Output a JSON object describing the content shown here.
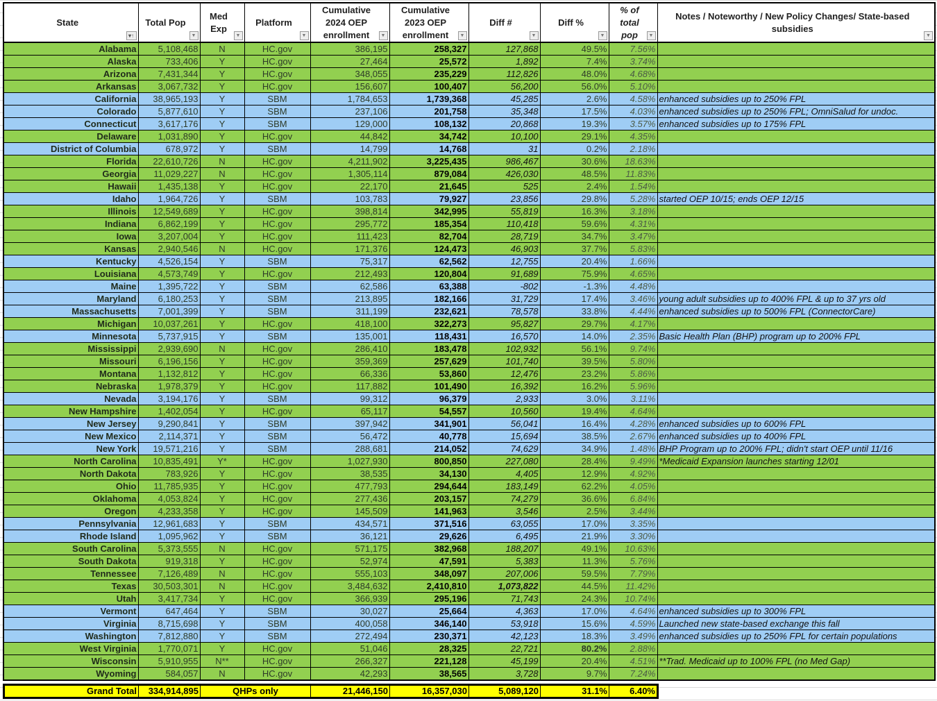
{
  "colors": {
    "hcgov": "#92d050",
    "sbm": "#9fcdf5",
    "total": "#ffff00"
  },
  "headers": [
    "State",
    "Total Pop",
    "Med Exp",
    "Platform",
    "Cumulative 2024 OEP enrollment",
    "Cumulative 2023 OEP enrollment",
    "Diff #",
    "Diff %",
    "% of total pop",
    "Notes / Noteworthy / New Policy Changes/ State-based subsidies"
  ],
  "rows": [
    [
      "Alabama",
      "5,108,468",
      "N",
      "HC.gov",
      "386,195",
      "258,327",
      "127,868",
      "49.5%",
      "7.56%",
      ""
    ],
    [
      "Alaska",
      "733,406",
      "Y",
      "HC.gov",
      "27,464",
      "25,572",
      "1,892",
      "7.4%",
      "3.74%",
      ""
    ],
    [
      "Arizona",
      "7,431,344",
      "Y",
      "HC.gov",
      "348,055",
      "235,229",
      "112,826",
      "48.0%",
      "4.68%",
      ""
    ],
    [
      "Arkansas",
      "3,067,732",
      "Y",
      "HC.gov",
      "156,607",
      "100,407",
      "56,200",
      "56.0%",
      "5.10%",
      ""
    ],
    [
      "California",
      "38,965,193",
      "Y",
      "SBM",
      "1,784,653",
      "1,739,368",
      "45,285",
      "2.6%",
      "4.58%",
      "enhanced subsidies up to 250% FPL"
    ],
    [
      "Colorado",
      "5,877,610",
      "Y",
      "SBM",
      "237,106",
      "201,758",
      "35,348",
      "17.5%",
      "4.03%",
      "enhanced subsidies up to 250% FPL; OmniSalud for undoc."
    ],
    [
      "Connecticut",
      "3,617,176",
      "Y",
      "SBM",
      "129,000",
      "108,132",
      "20,868",
      "19.3%",
      "3.57%",
      "enhanced subsidies up to 175% FPL"
    ],
    [
      "Delaware",
      "1,031,890",
      "Y",
      "HC.gov",
      "44,842",
      "34,742",
      "10,100",
      "29.1%",
      "4.35%",
      ""
    ],
    [
      "District of Columbia",
      "678,972",
      "Y",
      "SBM",
      "14,799",
      "14,768",
      "31",
      "0.2%",
      "2.18%",
      ""
    ],
    [
      "Florida",
      "22,610,726",
      "N",
      "HC.gov",
      "4,211,902",
      "3,225,435",
      "986,467",
      "30.6%",
      "18.63%",
      ""
    ],
    [
      "Georgia",
      "11,029,227",
      "N",
      "HC.gov",
      "1,305,114",
      "879,084",
      "426,030",
      "48.5%",
      "11.83%",
      ""
    ],
    [
      "Hawaii",
      "1,435,138",
      "Y",
      "HC.gov",
      "22,170",
      "21,645",
      "525",
      "2.4%",
      "1.54%",
      ""
    ],
    [
      "Idaho",
      "1,964,726",
      "Y",
      "SBM",
      "103,783",
      "79,927",
      "23,856",
      "29.8%",
      "5.28%",
      "started OEP 10/15; ends OEP 12/15"
    ],
    [
      "Illinois",
      "12,549,689",
      "Y",
      "HC.gov",
      "398,814",
      "342,995",
      "55,819",
      "16.3%",
      "3.18%",
      ""
    ],
    [
      "Indiana",
      "6,862,199",
      "Y",
      "HC.gov",
      "295,772",
      "185,354",
      "110,418",
      "59.6%",
      "4.31%",
      ""
    ],
    [
      "Iowa",
      "3,207,004",
      "Y",
      "HC.gov",
      "111,423",
      "82,704",
      "28,719",
      "34.7%",
      "3.47%",
      ""
    ],
    [
      "Kansas",
      "2,940,546",
      "N",
      "HC.gov",
      "171,376",
      "124,473",
      "46,903",
      "37.7%",
      "5.83%",
      ""
    ],
    [
      "Kentucky",
      "4,526,154",
      "Y",
      "SBM",
      "75,317",
      "62,562",
      "12,755",
      "20.4%",
      "1.66%",
      ""
    ],
    [
      "Louisiana",
      "4,573,749",
      "Y",
      "HC.gov",
      "212,493",
      "120,804",
      "91,689",
      "75.9%",
      "4.65%",
      ""
    ],
    [
      "Maine",
      "1,395,722",
      "Y",
      "SBM",
      "62,586",
      "63,388",
      "-802",
      "-1.3%",
      "4.48%",
      ""
    ],
    [
      "Maryland",
      "6,180,253",
      "Y",
      "SBM",
      "213,895",
      "182,166",
      "31,729",
      "17.4%",
      "3.46%",
      "young adult subsidies up to 400% FPL & up to 37 yrs old"
    ],
    [
      "Massachusetts",
      "7,001,399",
      "Y",
      "SBM",
      "311,199",
      "232,621",
      "78,578",
      "33.8%",
      "4.44%",
      "enhanced subsidies up to 500% FPL (ConnectorCare)"
    ],
    [
      "Michigan",
      "10,037,261",
      "Y",
      "HC.gov",
      "418,100",
      "322,273",
      "95,827",
      "29.7%",
      "4.17%",
      ""
    ],
    [
      "Minnesota",
      "5,737,915",
      "Y",
      "SBM",
      "135,001",
      "118,431",
      "16,570",
      "14.0%",
      "2.35%",
      "Basic Health Plan (BHP) program up to 200% FPL"
    ],
    [
      "Mississippi",
      "2,939,690",
      "N",
      "HC.gov",
      "286,410",
      "183,478",
      "102,932",
      "56.1%",
      "9.74%",
      ""
    ],
    [
      "Missouri",
      "6,196,156",
      "Y",
      "HC.gov",
      "359,369",
      "257,629",
      "101,740",
      "39.5%",
      "5.80%",
      ""
    ],
    [
      "Montana",
      "1,132,812",
      "Y",
      "HC.gov",
      "66,336",
      "53,860",
      "12,476",
      "23.2%",
      "5.86%",
      ""
    ],
    [
      "Nebraska",
      "1,978,379",
      "Y",
      "HC.gov",
      "117,882",
      "101,490",
      "16,392",
      "16.2%",
      "5.96%",
      ""
    ],
    [
      "Nevada",
      "3,194,176",
      "Y",
      "SBM",
      "99,312",
      "96,379",
      "2,933",
      "3.0%",
      "3.11%",
      ""
    ],
    [
      "New Hampshire",
      "1,402,054",
      "Y",
      "HC.gov",
      "65,117",
      "54,557",
      "10,560",
      "19.4%",
      "4.64%",
      ""
    ],
    [
      "New Jersey",
      "9,290,841",
      "Y",
      "SBM",
      "397,942",
      "341,901",
      "56,041",
      "16.4%",
      "4.28%",
      "enhanced subsidies up to 600% FPL"
    ],
    [
      "New Mexico",
      "2,114,371",
      "Y",
      "SBM",
      "56,472",
      "40,778",
      "15,694",
      "38.5%",
      "2.67%",
      "enhanced subsidies up to 400% FPL"
    ],
    [
      "New York",
      "19,571,216",
      "Y",
      "SBM",
      "288,681",
      "214,052",
      "74,629",
      "34.9%",
      "1.48%",
      "BHP Program up to 200% FPL; didn't start OEP until 11/16"
    ],
    [
      "North Carolina",
      "10,835,491",
      "Y*",
      "HC.gov",
      "1,027,930",
      "800,850",
      "227,080",
      "28.4%",
      "9.49%",
      "*Medicaid Expansion launches starting 12/01"
    ],
    [
      "North Dakota",
      "783,926",
      "Y",
      "HC.gov",
      "38,535",
      "34,130",
      "4,405",
      "12.9%",
      "4.92%",
      ""
    ],
    [
      "Ohio",
      "11,785,935",
      "Y",
      "HC.gov",
      "477,793",
      "294,644",
      "183,149",
      "62.2%",
      "4.05%",
      ""
    ],
    [
      "Oklahoma",
      "4,053,824",
      "Y",
      "HC.gov",
      "277,436",
      "203,157",
      "74,279",
      "36.6%",
      "6.84%",
      ""
    ],
    [
      "Oregon",
      "4,233,358",
      "Y",
      "HC.gov",
      "145,509",
      "141,963",
      "3,546",
      "2.5%",
      "3.44%",
      ""
    ],
    [
      "Pennsylvania",
      "12,961,683",
      "Y",
      "SBM",
      "434,571",
      "371,516",
      "63,055",
      "17.0%",
      "3.35%",
      ""
    ],
    [
      "Rhode Island",
      "1,095,962",
      "Y",
      "SBM",
      "36,121",
      "29,626",
      "6,495",
      "21.9%",
      "3.30%",
      ""
    ],
    [
      "South Carolina",
      "5,373,555",
      "N",
      "HC.gov",
      "571,175",
      "382,968",
      "188,207",
      "49.1%",
      "10.63%",
      ""
    ],
    [
      "South Dakota",
      "919,318",
      "Y",
      "HC.gov",
      "52,974",
      "47,591",
      "5,383",
      "11.3%",
      "5.76%",
      ""
    ],
    [
      "Tennessee",
      "7,126,489",
      "N",
      "HC.gov",
      "555,103",
      "348,097",
      "207,006",
      "59.5%",
      "7.79%",
      ""
    ],
    [
      "Texas",
      "30,503,301",
      "N",
      "HC.gov",
      "3,484,632",
      "2,410,810",
      "1,073,822",
      "44.5%",
      "11.42%",
      ""
    ],
    [
      "Utah",
      "3,417,734",
      "Y",
      "HC.gov",
      "366,939",
      "295,196",
      "71,743",
      "24.3%",
      "10.74%",
      ""
    ],
    [
      "Vermont",
      "647,464",
      "Y",
      "SBM",
      "30,027",
      "25,664",
      "4,363",
      "17.0%",
      "4.64%",
      "enhanced subsidies up to 300% FPL"
    ],
    [
      "Virginia",
      "8,715,698",
      "Y",
      "SBM",
      "400,058",
      "346,140",
      "53,918",
      "15.6%",
      "4.59%",
      "Launched new state-based exchange this fall"
    ],
    [
      "Washington",
      "7,812,880",
      "Y",
      "SBM",
      "272,494",
      "230,371",
      "42,123",
      "18.3%",
      "3.49%",
      "enhanced subsidies up to 250% FPL for certain populations"
    ],
    [
      "West Virginia",
      "1,770,071",
      "Y",
      "HC.gov",
      "51,046",
      "28,325",
      "22,721",
      "80.2%",
      "2.88%",
      ""
    ],
    [
      "Wisconsin",
      "5,910,955",
      "N**",
      "HC.gov",
      "266,327",
      "221,128",
      "45,199",
      "20.4%",
      "4.51%",
      "**Trad. Medicaid up to 100% FPL (no Med Gap)"
    ],
    [
      "Wyoming",
      "584,057",
      "N",
      "HC.gov",
      "42,293",
      "38,565",
      "3,728",
      "9.7%",
      "7.24%",
      ""
    ]
  ],
  "bold_cells": [
    [
      "Texas",
      6
    ],
    [
      "West Virginia",
      7
    ]
  ],
  "total": {
    "label": "Grand Total",
    "pop": "334,914,895",
    "platform_note": "QHPs only",
    "y2024": "21,446,150",
    "y2023": "16,357,030",
    "diff": "5,089,120",
    "diff_pct": "31.1%",
    "pct_pop": "6.40%"
  }
}
